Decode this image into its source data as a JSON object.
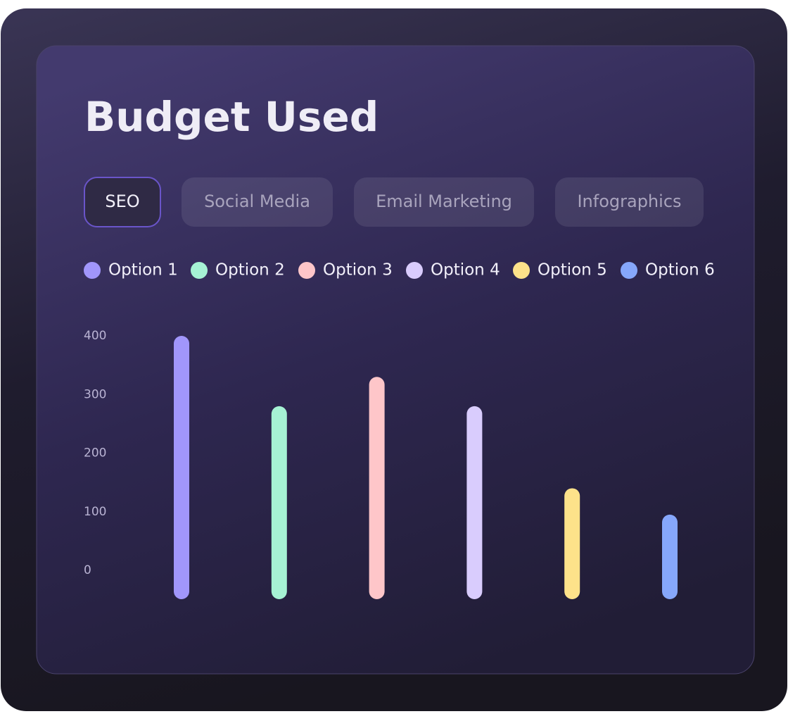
{
  "tabs": [
    "SEO",
    "Social Media",
    "Email Marketing",
    "Infographics"
  ],
  "chart_data": {
    "type": "bar",
    "title": "Budget Used",
    "categories": [
      "Option 1",
      "Option 2",
      "Option 3",
      "Option 4",
      "Option 5",
      "Option 6"
    ],
    "values": [
      400,
      280,
      330,
      280,
      140,
      95
    ],
    "colors": [
      "#a196fb",
      "#a6f2d4",
      "#fec6c9",
      "#d9ccfd",
      "#fde28a",
      "#86a7fb"
    ],
    "ylim": [
      0,
      400
    ],
    "yticks": [
      0,
      100,
      200,
      300,
      400
    ],
    "grid": false
  }
}
